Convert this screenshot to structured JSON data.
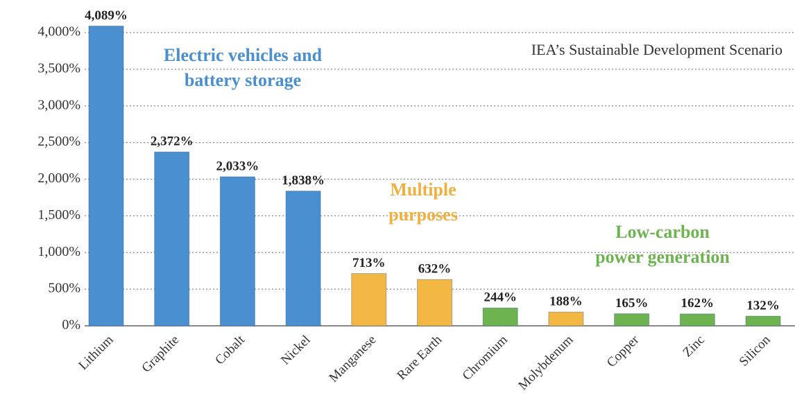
{
  "chart_data": {
    "type": "bar",
    "title": "IEA’s Sustainable Development Scenario",
    "categories": [
      "Lithium",
      "Graphite",
      "Cobalt",
      "Nickel",
      "Manganese",
      "Rare Earth",
      "Chromium",
      "Molybdenum",
      "Copper",
      "Zinc",
      "Silicon"
    ],
    "values": [
      4089,
      2372,
      2033,
      1838,
      713,
      632,
      244,
      188,
      165,
      162,
      132
    ],
    "value_labels": [
      "4,089%",
      "2,372%",
      "2,033%",
      "1,838%",
      "713%",
      "632%",
      "244%",
      "188%",
      "165%",
      "162%",
      "132%"
    ],
    "colors": [
      "#4a8fd0",
      "#4a8fd0",
      "#4a8fd0",
      "#4a8fd0",
      "#f3b844",
      "#f3b844",
      "#6db350",
      "#f3b844",
      "#6db350",
      "#6db350",
      "#6db350"
    ],
    "annotations": [
      {
        "lines": [
          "Electric vehicles and",
          "battery storage"
        ],
        "color": "#4a8fd0"
      },
      {
        "lines": [
          "Multiple",
          "purposes"
        ],
        "color": "#f0b040"
      },
      {
        "lines": [
          "Low-carbon",
          "power generation"
        ],
        "color": "#6db350"
      }
    ],
    "ylim": [
      0,
      4000
    ],
    "yticks": [
      {
        "value": 0,
        "label": "0%"
      },
      {
        "value": 500,
        "label": "500%"
      },
      {
        "value": 1000,
        "label": "1,000%"
      },
      {
        "value": 1500,
        "label": "1,500%"
      },
      {
        "value": 2000,
        "label": "2,000%"
      },
      {
        "value": 2500,
        "label": "2,500%"
      },
      {
        "value": 3000,
        "label": "3,000%"
      },
      {
        "value": 3500,
        "label": "3,500%"
      },
      {
        "value": 4000,
        "label": "4,000%"
      }
    ],
    "grid": true
  }
}
